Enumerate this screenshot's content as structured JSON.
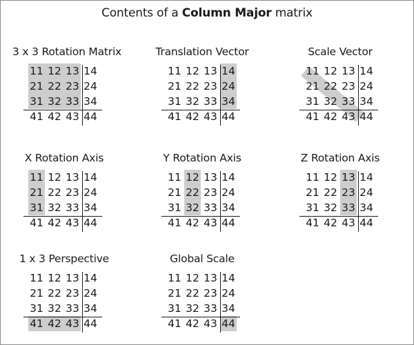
{
  "title": {
    "prefix": "Contents of a ",
    "bold": "Column Major",
    "suffix": " matrix"
  },
  "rows": [
    [
      "11",
      "12",
      "13",
      "14"
    ],
    [
      "21",
      "22",
      "23",
      "24"
    ],
    [
      "31",
      "32",
      "33",
      "34"
    ],
    [
      "41",
      "42",
      "43",
      "44"
    ]
  ],
  "highlight_color": "#cdcdcd",
  "panels": [
    {
      "id": "rotation-3x3",
      "label": "3 x 3 Rotation Matrix",
      "highlighted": [
        "11",
        "12",
        "13",
        "21",
        "22",
        "23",
        "31",
        "32",
        "33"
      ]
    },
    {
      "id": "translation-vector",
      "label": "Translation Vector",
      "highlighted": [
        "14",
        "24",
        "34"
      ]
    },
    {
      "id": "scale-vector",
      "label": "Scale Vector",
      "highlighted": [
        "11",
        "22",
        "33"
      ],
      "highlight_style": "diagonal"
    },
    {
      "id": "x-rotation-axis",
      "label": "X Rotation Axis",
      "highlighted": [
        "11",
        "21",
        "31"
      ]
    },
    {
      "id": "y-rotation-axis",
      "label": "Y Rotation Axis",
      "highlighted": [
        "12",
        "22",
        "32"
      ]
    },
    {
      "id": "z-rotation-axis",
      "label": "Z Rotation Axis",
      "highlighted": [
        "13",
        "23",
        "33"
      ]
    },
    {
      "id": "perspective-1x3",
      "label": "1 x 3 Perspective",
      "highlighted": [
        "41",
        "42",
        "43"
      ]
    },
    {
      "id": "global-scale",
      "label": "Global Scale",
      "highlighted": [
        "44"
      ]
    }
  ]
}
